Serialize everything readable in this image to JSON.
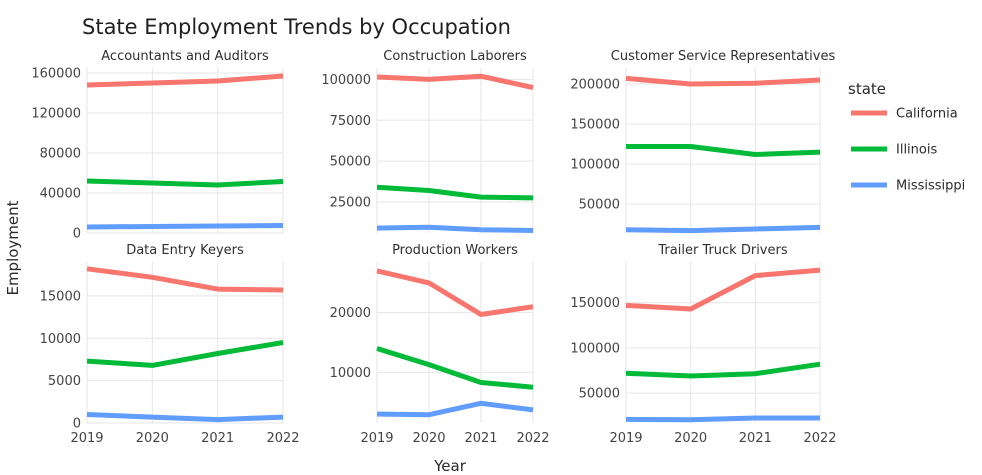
{
  "chart_data": {
    "type": "line",
    "title": "State Employment Trends by Occupation",
    "xlabel": "Year",
    "ylabel": "Employment",
    "legend": {
      "title": "state",
      "placement": "right"
    },
    "x": [
      2019,
      2020,
      2021,
      2022
    ],
    "x_tick_labels": [
      "2019",
      "2020",
      "2021",
      "2022"
    ],
    "grid": true,
    "series_colors": {
      "California": "#f8766d",
      "Illinois": "#00ba38",
      "Mississippi": "#619cff"
    },
    "series_names": [
      "California",
      "Illinois",
      "Mississippi"
    ],
    "panels": [
      {
        "name": "Accountants and Auditors",
        "ylim": [
          0,
          165000
        ],
        "yticks": [
          0,
          40000,
          80000,
          120000,
          160000
        ],
        "ytick_labels": [
          "0",
          "40000",
          "80000",
          "120000",
          "160000"
        ],
        "series": [
          {
            "name": "California",
            "values": [
              148000,
              150000,
              152000,
              157000
            ]
          },
          {
            "name": "Illinois",
            "values": [
              52000,
              50000,
              48000,
              51500
            ]
          },
          {
            "name": "Mississippi",
            "values": [
              6000,
              6500,
              7000,
              7500
            ]
          }
        ]
      },
      {
        "name": "Construction Laborers",
        "ylim": [
          6000,
          107000
        ],
        "yticks": [
          25000,
          50000,
          75000,
          100000
        ],
        "ytick_labels": [
          "25000",
          "50000",
          "75000",
          "100000"
        ],
        "series": [
          {
            "name": "California",
            "values": [
              101500,
              100000,
              102000,
              95000
            ]
          },
          {
            "name": "Illinois",
            "values": [
              34000,
              32000,
              28000,
              27500
            ]
          },
          {
            "name": "Mississippi",
            "values": [
              9000,
              9500,
              8000,
              7500
            ]
          }
        ]
      },
      {
        "name": "Customer Service Representatives",
        "ylim": [
          14000,
          220000
        ],
        "yticks": [
          50000,
          100000,
          150000,
          200000
        ],
        "ytick_labels": [
          "50000",
          "100000",
          "150000",
          "200000"
        ],
        "series": [
          {
            "name": "California",
            "values": [
              207000,
              200000,
              201000,
              205000
            ]
          },
          {
            "name": "Illinois",
            "values": [
              122000,
              122000,
              112000,
              115000
            ]
          },
          {
            "name": "Mississippi",
            "values": [
              18000,
              17000,
              19000,
              21000
            ]
          }
        ]
      },
      {
        "name": "Data Entry Keyers",
        "ylim": [
          0,
          19000
        ],
        "yticks": [
          0,
          5000,
          10000,
          15000
        ],
        "ytick_labels": [
          "0",
          "5000",
          "10000",
          "15000"
        ],
        "series": [
          {
            "name": "California",
            "values": [
              18200,
              17200,
              15800,
              15700
            ]
          },
          {
            "name": "Illinois",
            "values": [
              7300,
              6800,
              8200,
              9500
            ]
          },
          {
            "name": "Mississippi",
            "values": [
              1000,
              700,
              400,
              700
            ]
          }
        ]
      },
      {
        "name": "Production Workers",
        "ylim": [
          1500,
          28500
        ],
        "yticks": [
          10000,
          20000
        ],
        "ytick_labels": [
          "10000",
          "20000"
        ],
        "series": [
          {
            "name": "California",
            "values": [
              27000,
              25000,
              19700,
              21000
            ]
          },
          {
            "name": "Illinois",
            "values": [
              14000,
              11300,
              8300,
              7500
            ]
          },
          {
            "name": "Mississippi",
            "values": [
              3000,
              2900,
              4800,
              3700
            ]
          }
        ]
      },
      {
        "name": "Trailer Truck Drivers",
        "ylim": [
          17000,
          195000
        ],
        "yticks": [
          50000,
          100000,
          150000
        ],
        "ytick_labels": [
          "50000",
          "100000",
          "150000"
        ],
        "series": [
          {
            "name": "California",
            "values": [
              147000,
              143000,
              180000,
              186000
            ]
          },
          {
            "name": "Illinois",
            "values": [
              72000,
              69000,
              71500,
              82000
            ]
          },
          {
            "name": "Mississippi",
            "values": [
              21000,
              20500,
              22500,
              22500
            ]
          }
        ]
      }
    ]
  }
}
